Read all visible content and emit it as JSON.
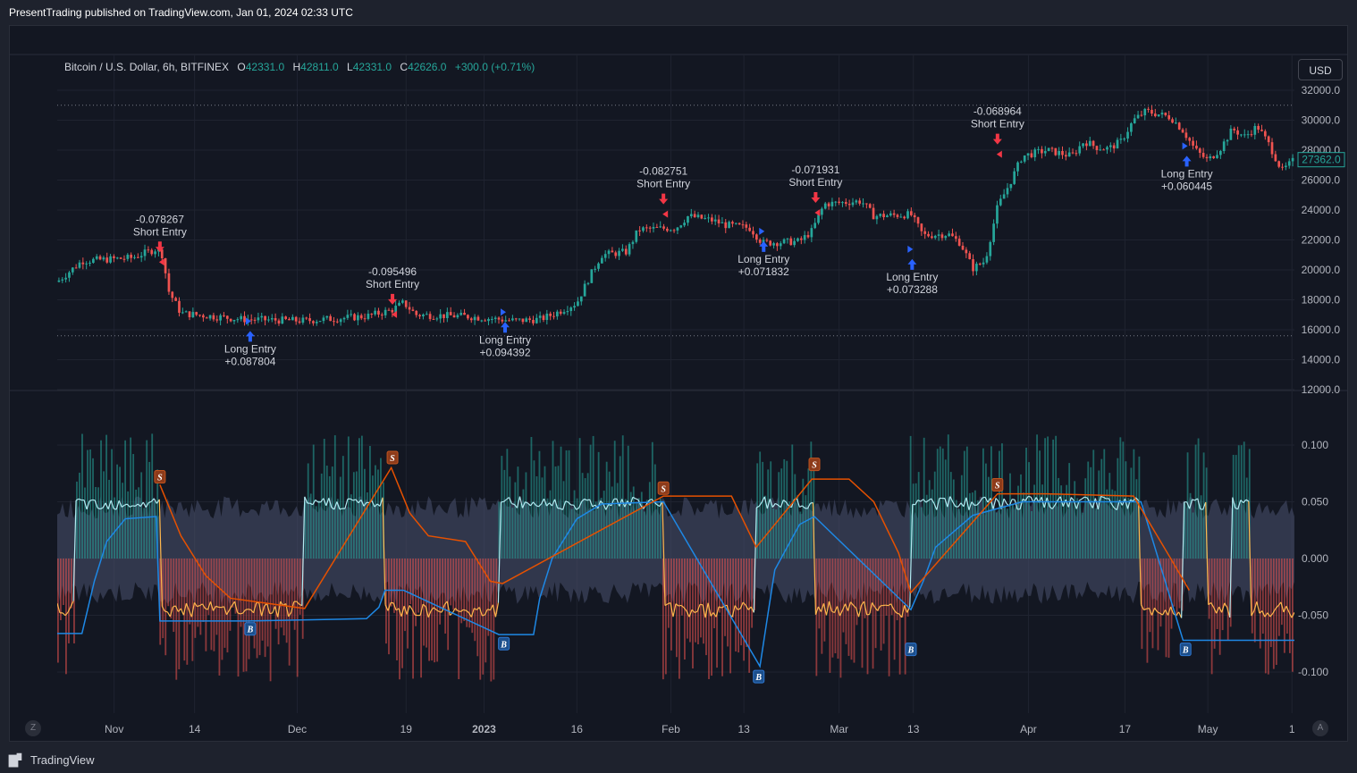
{
  "header": {
    "published_by": "PresentTrading published on TradingView.com, Jan 01, 2024 02:33 UTC"
  },
  "legend": {
    "symbol": "Bitcoin / U.S. Dollar, 6h, BITFINEX",
    "open_label": "O",
    "open": "42331.0",
    "high_label": "H",
    "high": "42811.0",
    "low_label": "L",
    "low": "42331.0",
    "close_label": "C",
    "close": "42626.0",
    "change": "+300.0 (+0.71%)"
  },
  "currency_button": "USD",
  "footer": {
    "brand": "TradingView"
  },
  "nav_buttons": {
    "left": "Z",
    "right": "A"
  },
  "colors": {
    "up": "#26a69a",
    "down": "#ef5350",
    "long": "#2962ff",
    "short": "#f23645",
    "osc_light": "#b2ebf2",
    "osc_orange": "#ffb74d",
    "buy_line": "#1e88e5",
    "sell_line": "#e65100",
    "price_tag": "#26a69a"
  },
  "chart_data": [
    {
      "type": "candlestick",
      "title": "Bitcoin / U.S. Dollar, 6h, BITFINEX",
      "x_ticks": [
        "Nov",
        "14",
        "Dec",
        "19",
        "2023",
        "16",
        "Feb",
        "13",
        "Mar",
        "13",
        "Apr",
        "17",
        "May",
        "1"
      ],
      "y_ticks": [
        "32000.0",
        "30000.0",
        "28000.0",
        "26000.0",
        "24000.0",
        "22000.0",
        "20000.0",
        "18000.0",
        "16000.0",
        "14000.0",
        "12000.0"
      ],
      "ylim": [
        12000,
        32000
      ],
      "last_price": "27362.0",
      "hlines": [
        31000,
        15600
      ],
      "price_path": [
        [
          0,
          19200
        ],
        [
          0.02,
          20600
        ],
        [
          0.06,
          20800
        ],
        [
          0.08,
          21400
        ],
        [
          0.085,
          21000
        ],
        [
          0.09,
          18600
        ],
        [
          0.1,
          17100
        ],
        [
          0.15,
          16700
        ],
        [
          0.2,
          16600
        ],
        [
          0.25,
          16900
        ],
        [
          0.27,
          17300
        ],
        [
          0.28,
          17800
        ],
        [
          0.29,
          17000
        ],
        [
          0.33,
          16900
        ],
        [
          0.37,
          16600
        ],
        [
          0.39,
          16700
        ],
        [
          0.4,
          17000
        ],
        [
          0.42,
          17800
        ],
        [
          0.43,
          19500
        ],
        [
          0.44,
          21000
        ],
        [
          0.46,
          21200
        ],
        [
          0.47,
          22700
        ],
        [
          0.5,
          22800
        ],
        [
          0.51,
          23600
        ],
        [
          0.53,
          23300
        ],
        [
          0.54,
          23000
        ],
        [
          0.56,
          22800
        ],
        [
          0.57,
          21800
        ],
        [
          0.6,
          21900
        ],
        [
          0.61,
          22600
        ],
        [
          0.62,
          24400
        ],
        [
          0.65,
          24600
        ],
        [
          0.66,
          23600
        ],
        [
          0.69,
          23700
        ],
        [
          0.7,
          22300
        ],
        [
          0.72,
          22400
        ],
        [
          0.73,
          21800
        ],
        [
          0.74,
          20100
        ],
        [
          0.75,
          20600
        ],
        [
          0.76,
          24200
        ],
        [
          0.77,
          25800
        ],
        [
          0.78,
          27600
        ],
        [
          0.8,
          28000
        ],
        [
          0.82,
          27600
        ],
        [
          0.83,
          28600
        ],
        [
          0.84,
          28200
        ],
        [
          0.85,
          28100
        ],
        [
          0.86,
          28600
        ],
        [
          0.87,
          30000
        ],
        [
          0.88,
          30600
        ],
        [
          0.9,
          30200
        ],
        [
          0.91,
          29300
        ],
        [
          0.92,
          28000
        ],
        [
          0.93,
          27300
        ],
        [
          0.94,
          28100
        ],
        [
          0.95,
          29400
        ],
        [
          0.96,
          28900
        ],
        [
          0.97,
          29600
        ],
        [
          0.98,
          28300
        ],
        [
          0.99,
          26600
        ],
        [
          1.0,
          27362
        ]
      ],
      "annotations": [
        {
          "kind": "short",
          "label": "Short Entry",
          "value": "-0.078267",
          "x": 0.083,
          "y": 21000
        },
        {
          "kind": "long",
          "label": "Long Entry",
          "value": "+0.087804",
          "x": 0.156,
          "y": 16100
        },
        {
          "kind": "short",
          "label": "Short Entry",
          "value": "-0.095496",
          "x": 0.271,
          "y": 17500
        },
        {
          "kind": "long",
          "label": "Long Entry",
          "value": "+0.094392",
          "x": 0.362,
          "y": 16700
        },
        {
          "kind": "short",
          "label": "Short Entry",
          "value": "-0.082751",
          "x": 0.49,
          "y": 24200
        },
        {
          "kind": "long",
          "label": "Long Entry",
          "value": "+0.071832",
          "x": 0.571,
          "y": 22100
        },
        {
          "kind": "short",
          "label": "Short Entry",
          "value": "-0.071931",
          "x": 0.613,
          "y": 24300
        },
        {
          "kind": "long",
          "label": "Long Entry",
          "value": "+0.073288",
          "x": 0.691,
          "y": 20900
        },
        {
          "kind": "short",
          "label": "Short Entry",
          "value": "-0.068964",
          "x": 0.76,
          "y": 28200
        },
        {
          "kind": "long",
          "label": "Long Entry",
          "value": "+0.060445",
          "x": 0.913,
          "y": 27800
        }
      ]
    },
    {
      "type": "area",
      "y_ticks": [
        "0.100",
        "0.050",
        "0.000",
        "-0.050",
        "-0.100"
      ],
      "ylim": [
        -0.13,
        0.13
      ],
      "regimes": [
        {
          "from": 0.0,
          "to": 0.015,
          "sign": -1
        },
        {
          "from": 0.015,
          "to": 0.083,
          "sign": 1
        },
        {
          "from": 0.083,
          "to": 0.2,
          "sign": -1
        },
        {
          "from": 0.2,
          "to": 0.265,
          "sign": 1
        },
        {
          "from": 0.265,
          "to": 0.357,
          "sign": -1
        },
        {
          "from": 0.357,
          "to": 0.49,
          "sign": 1
        },
        {
          "from": 0.49,
          "to": 0.565,
          "sign": -1
        },
        {
          "from": 0.565,
          "to": 0.612,
          "sign": 1
        },
        {
          "from": 0.612,
          "to": 0.69,
          "sign": -1
        },
        {
          "from": 0.69,
          "to": 0.876,
          "sign": 1
        },
        {
          "from": 0.876,
          "to": 0.91,
          "sign": -1
        },
        {
          "from": 0.91,
          "to": 0.93,
          "sign": 1
        },
        {
          "from": 0.93,
          "to": 0.95,
          "sign": -1
        },
        {
          "from": 0.95,
          "to": 0.965,
          "sign": 1
        },
        {
          "from": 0.965,
          "to": 1.0,
          "sign": -1
        }
      ],
      "buy_line": [
        [
          0,
          -0.066
        ],
        [
          0.02,
          -0.066
        ],
        [
          0.03,
          -0.02
        ],
        [
          0.04,
          0.015
        ],
        [
          0.055,
          0.035
        ],
        [
          0.08,
          0.037
        ],
        [
          0.083,
          -0.055
        ],
        [
          0.155,
          -0.055
        ],
        [
          0.25,
          -0.053
        ],
        [
          0.26,
          -0.043
        ],
        [
          0.265,
          -0.028
        ],
        [
          0.28,
          -0.028
        ],
        [
          0.357,
          -0.067
        ],
        [
          0.385,
          -0.067
        ],
        [
          0.39,
          -0.035
        ],
        [
          0.4,
          0.0
        ],
        [
          0.42,
          0.035
        ],
        [
          0.44,
          0.048
        ],
        [
          0.49,
          0.05
        ],
        [
          0.568,
          -0.095
        ],
        [
          0.575,
          -0.045
        ],
        [
          0.58,
          -0.01
        ],
        [
          0.6,
          0.03
        ],
        [
          0.612,
          0.037
        ],
        [
          0.69,
          -0.045
        ],
        [
          0.7,
          -0.02
        ],
        [
          0.71,
          0.01
        ],
        [
          0.74,
          0.038
        ],
        [
          0.78,
          0.05
        ],
        [
          0.876,
          0.05
        ],
        [
          0.91,
          -0.072
        ],
        [
          1.0,
          -0.072
        ]
      ],
      "sell_line": [
        [
          0.083,
          0.065
        ],
        [
          0.1,
          0.02
        ],
        [
          0.12,
          -0.015
        ],
        [
          0.14,
          -0.035
        ],
        [
          0.2,
          -0.044
        ],
        [
          0.27,
          0.08
        ],
        [
          0.285,
          0.04
        ],
        [
          0.3,
          0.02
        ],
        [
          0.33,
          0.015
        ],
        [
          0.35,
          -0.02
        ],
        [
          0.36,
          -0.022
        ],
        [
          0.49,
          0.055
        ],
        [
          0.545,
          0.055
        ],
        [
          0.565,
          0.01
        ],
        [
          0.61,
          0.07
        ],
        [
          0.64,
          0.07
        ],
        [
          0.66,
          0.05
        ],
        [
          0.68,
          0.005
        ],
        [
          0.69,
          -0.03
        ],
        [
          0.76,
          0.057
        ],
        [
          0.8,
          0.057
        ],
        [
          0.87,
          0.055
        ],
        [
          0.9,
          0.0
        ],
        [
          0.915,
          -0.028
        ]
      ],
      "markers": [
        {
          "letter": "S",
          "x": 0.083,
          "y": 0.072
        },
        {
          "letter": "B",
          "x": 0.156,
          "y": -0.062
        },
        {
          "letter": "S",
          "x": 0.271,
          "y": 0.089
        },
        {
          "letter": "B",
          "x": 0.361,
          "y": -0.075
        },
        {
          "letter": "S",
          "x": 0.49,
          "y": 0.062
        },
        {
          "letter": "B",
          "x": 0.567,
          "y": -0.104
        },
        {
          "letter": "S",
          "x": 0.612,
          "y": 0.083
        },
        {
          "letter": "B",
          "x": 0.69,
          "y": -0.08
        },
        {
          "letter": "S",
          "x": 0.76,
          "y": 0.065
        },
        {
          "letter": "B",
          "x": 0.912,
          "y": -0.08
        }
      ]
    }
  ]
}
